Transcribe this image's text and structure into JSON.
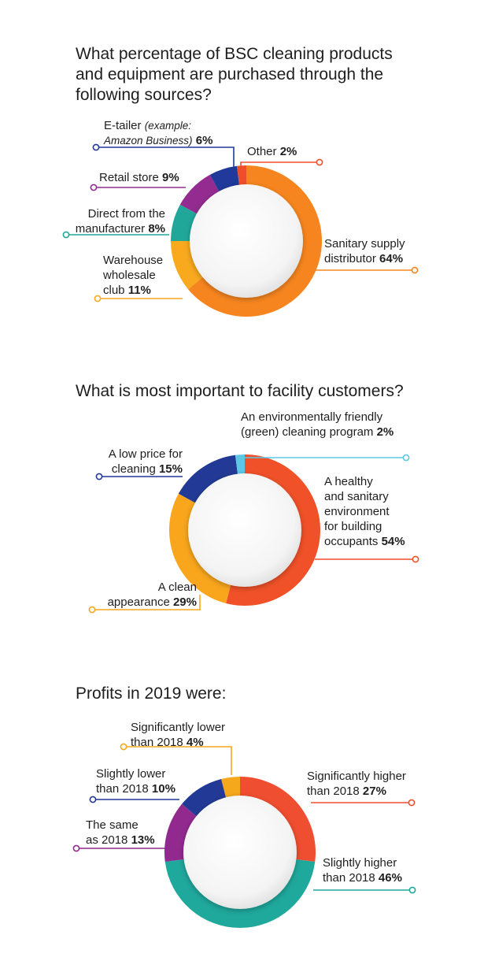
{
  "charts": [
    {
      "title_lines": [
        "What percentage of BSC cleaning products",
        "and equipment are purchased through the",
        "following sources?"
      ],
      "chart_data": {
        "type": "pie",
        "donut": true,
        "categories": [
          "Sanitary supply distributor",
          "Warehouse wholesale club",
          "Direct from the manufacturer",
          "Retail store",
          "E-tailer (example: Amazon Business)",
          "Other"
        ],
        "values": [
          64,
          11,
          8,
          9,
          6,
          2
        ]
      },
      "slices": [
        {
          "label_lines": [
            "Sanitary supply",
            "distributor"
          ],
          "value": "64%",
          "color": "#F7851F"
        },
        {
          "label_lines": [
            "Warehouse",
            "wholesale",
            "club"
          ],
          "value": "11%",
          "color": "#F9A91E"
        },
        {
          "label_lines": [
            "Direct from the",
            "manufacturer"
          ],
          "value": "8%",
          "color": "#21A79A"
        },
        {
          "label_lines": [
            "Retail store"
          ],
          "value": "9%",
          "color": "#932B90"
        },
        {
          "label_lines": [
            "E-tailer"
          ],
          "note_lines": [
            "(example:",
            "Amazon Business)"
          ],
          "value": "6%",
          "color": "#20399A"
        },
        {
          "label_lines": [
            "Other"
          ],
          "value": "2%",
          "color": "#F04E2B"
        }
      ]
    },
    {
      "title_lines": [
        "What is most important to facility customers?"
      ],
      "chart_data": {
        "type": "pie",
        "donut": true,
        "categories": [
          "A healthy and sanitary environment for building occupants",
          "A clean appearance",
          "A low price for cleaning",
          "An environmentally friendly (green) cleaning program"
        ],
        "values": [
          54,
          29,
          15,
          2
        ]
      },
      "slices": [
        {
          "label_lines": [
            "A healthy",
            "and sanitary",
            "environment",
            "for building",
            "occupants"
          ],
          "value": "54%",
          "color": "#F05128"
        },
        {
          "label_lines": [
            "A clean",
            "appearance"
          ],
          "value": "29%",
          "color": "#F9A61C"
        },
        {
          "label_lines": [
            "A low price for",
            "cleaning"
          ],
          "value": "15%",
          "color": "#223A95"
        },
        {
          "label_lines": [
            "An environmentally friendly",
            "(green) cleaning program"
          ],
          "value": "2%",
          "color": "#5CC8E6"
        }
      ]
    },
    {
      "title_lines": [
        "Profits in 2019 were:"
      ],
      "chart_data": {
        "type": "pie",
        "donut": true,
        "categories": [
          "Significantly higher than 2018",
          "Slightly higher than 2018",
          "The same as 2018",
          "Slightly lower than 2018",
          "Significantly lower than 2018"
        ],
        "values": [
          27,
          46,
          13,
          10,
          4
        ]
      },
      "slices": [
        {
          "label_lines": [
            "Significantly higher",
            "than 2018"
          ],
          "value": "27%",
          "color": "#F04E30"
        },
        {
          "label_lines": [
            "Slightly higher",
            "than 2018"
          ],
          "value": "46%",
          "color": "#1FA89C"
        },
        {
          "label_lines": [
            "The same",
            "as 2018"
          ],
          "value": "13%",
          "color": "#92298F"
        },
        {
          "label_lines": [
            "Slightly lower",
            "than 2018"
          ],
          "value": "10%",
          "color": "#223A95"
        },
        {
          "label_lines": [
            "Significantly lower",
            "than 2018"
          ],
          "value": "4%",
          "color": "#F6A81D"
        }
      ]
    }
  ]
}
